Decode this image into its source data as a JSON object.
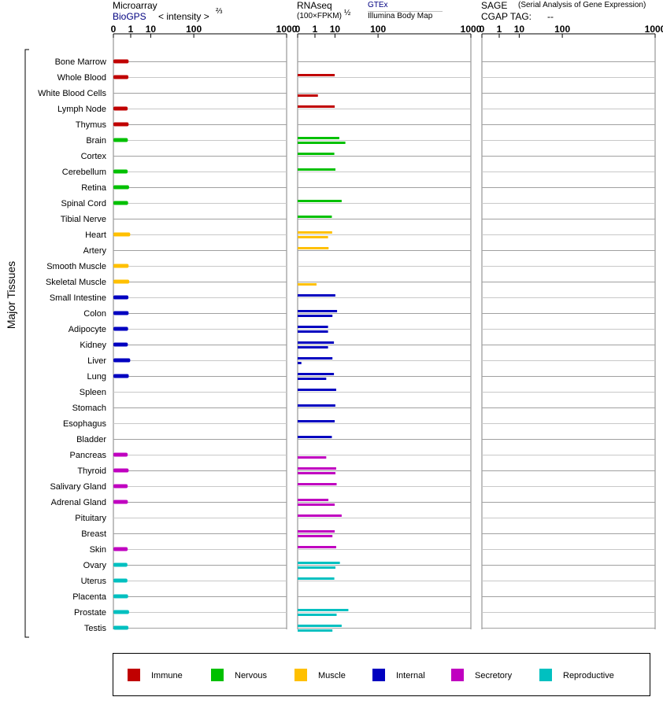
{
  "panels": {
    "microarray": {
      "title": "Microarray",
      "source": "BioGPS",
      "unit": "< intensity >",
      "exponent": "⅔",
      "ticks": [
        "0",
        "1",
        "10",
        "100",
        "1000"
      ]
    },
    "rnaseq": {
      "title": "RNAseq",
      "unit": "(100×FPKM)",
      "exponent": "½",
      "source_a": "GTEx",
      "source_b": "Illumina Body Map",
      "ticks": [
        "0",
        "1",
        "10",
        "100",
        "1000"
      ]
    },
    "sage": {
      "title": "SAGE",
      "subtitle": "(Serial Analysis of Gene Expression)",
      "tag_label": "CGAP TAG:",
      "tag_value": "--",
      "ticks": [
        "0",
        "1",
        "10",
        "100",
        "1000"
      ]
    }
  },
  "group_label": "Major Tissues",
  "legend": [
    {
      "name": "Immune",
      "color": "#c00000"
    },
    {
      "name": "Nervous",
      "color": "#00c000"
    },
    {
      "name": "Muscle",
      "color": "#ffc000"
    },
    {
      "name": "Internal",
      "color": "#0000c0"
    },
    {
      "name": "Secretory",
      "color": "#c000c0"
    },
    {
      "name": "Reproductive",
      "color": "#00c0c0"
    }
  ],
  "chart_data": {
    "type": "bar",
    "orientation": "horizontal",
    "x_scale": "power",
    "xlim": [
      0,
      1000
    ],
    "categories": [
      "Bone Marrow",
      "Whole Blood",
      "White Blood Cells",
      "Lymph Node",
      "Thymus",
      "Brain",
      "Cortex",
      "Cerebellum",
      "Retina",
      "Spinal Cord",
      "Tibial Nerve",
      "Heart",
      "Artery",
      "Smooth Muscle",
      "Skeletal Muscle",
      "Small Intestine",
      "Colon",
      "Adipocyte",
      "Kidney",
      "Liver",
      "Lung",
      "Spleen",
      "Stomach",
      "Esophagus",
      "Bladder",
      "Pancreas",
      "Thyroid",
      "Salivary Gland",
      "Adrenal Gland",
      "Pituitary",
      "Breast",
      "Skin",
      "Ovary",
      "Uterus",
      "Placenta",
      "Prostate",
      "Testis"
    ],
    "groups": [
      "Immune",
      "Immune",
      "Immune",
      "Immune",
      "Immune",
      "Nervous",
      "Nervous",
      "Nervous",
      "Nervous",
      "Nervous",
      "Nervous",
      "Muscle",
      "Muscle",
      "Muscle",
      "Muscle",
      "Internal",
      "Internal",
      "Internal",
      "Internal",
      "Internal",
      "Internal",
      "Internal",
      "Internal",
      "Internal",
      "Internal",
      "Secretory",
      "Secretory",
      "Secretory",
      "Secretory",
      "Secretory",
      "Secretory",
      "Secretory",
      "Reproductive",
      "Reproductive",
      "Reproductive",
      "Reproductive",
      "Reproductive"
    ],
    "microarray": [
      0.68,
      0.65,
      null,
      0.56,
      0.68,
      0.58,
      null,
      0.56,
      0.74,
      0.61,
      null,
      0.92,
      null,
      0.68,
      0.77,
      0.65,
      0.68,
      0.61,
      0.58,
      0.92,
      0.7,
      null,
      null,
      null,
      null,
      0.56,
      0.68,
      0.56,
      0.58,
      null,
      null,
      0.56,
      0.53,
      0.53,
      0.61,
      0.74,
      0.65
    ],
    "rnaseq_gtex": [
      null,
      9.8,
      null,
      9.8,
      null,
      13.9,
      9.5,
      10.4,
      null,
      16.4,
      7.7,
      7.9,
      5.7,
      null,
      null,
      10.3,
      11.8,
      5.4,
      9.2,
      8.1,
      9.2,
      11.0,
      10.3,
      9.8,
      7.7,
      null,
      11.0,
      11.4,
      5.6,
      16.4,
      9.8,
      11.0,
      14.5,
      9.5,
      null,
      25.1,
      16.4
    ],
    "rnaseq_ibm": [
      null,
      null,
      1.6,
      null,
      null,
      20.9,
      null,
      null,
      null,
      null,
      null,
      5.4,
      null,
      null,
      1.3,
      null,
      8.1,
      5.4,
      5.4,
      0.01,
      4.5,
      null,
      null,
      null,
      null,
      4.5,
      10.4,
      null,
      9.8,
      null,
      8.1,
      null,
      10.4,
      null,
      null,
      11.4,
      8.1
    ]
  }
}
